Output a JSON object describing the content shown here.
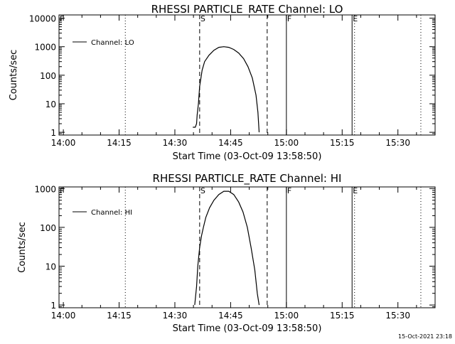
{
  "chart_data": [
    {
      "type": "line",
      "title": "RHESSI PARTICLE_RATE Channel: LO",
      "xlabel": "Start Time (03-Oct-09 13:58:50)",
      "ylabel": "Counts/sec",
      "yscale": "log",
      "ylim": [
        0.8,
        13000
      ],
      "yticks": [
        1,
        10,
        100,
        1000,
        10000
      ],
      "ytick_labels": [
        "1",
        "10",
        "100",
        "1000",
        "10000"
      ],
      "xlim": [
        "13:58:50",
        "15:40:00"
      ],
      "xticks": [
        "14:00",
        "14:15",
        "14:30",
        "14:45",
        "15:00",
        "15:15",
        "15:30"
      ],
      "legend": {
        "label": "Channel: LO",
        "location": "top-left"
      },
      "markers": [
        {
          "label": "F",
          "time": "13:58:50",
          "style": "dotted"
        },
        {
          "label": "S",
          "time": "14:36:40",
          "style": "dashed"
        },
        {
          "label": "",
          "time": "14:54:50",
          "style": "dashed"
        },
        {
          "label": "F",
          "time": "15:00:00",
          "style": "solid"
        },
        {
          "label": "E",
          "time": "15:17:40",
          "style": "solid"
        },
        {
          "label": "",
          "time": "14:16:40",
          "style": "dotted"
        },
        {
          "label": "",
          "time": "15:18:20",
          "style": "dotted"
        },
        {
          "label": "",
          "time": "15:36:10",
          "style": "dotted"
        }
      ],
      "series": [
        {
          "x": [
            "14:34:50",
            "14:35:30",
            "14:35:50",
            "14:36:00",
            "14:36:20",
            "14:36:40",
            "14:37:20",
            "14:38:00",
            "14:39:10",
            "14:40:30",
            "14:41:50",
            "14:43:10",
            "14:44:30",
            "14:45:50",
            "14:47:10",
            "14:48:30",
            "14:49:40",
            "14:50:50",
            "14:51:50",
            "14:52:20",
            "14:52:40"
          ],
          "y": [
            1.5,
            1.5,
            2,
            4,
            10,
            40,
            150,
            300,
            500,
            750,
            950,
            1000,
            950,
            800,
            600,
            380,
            200,
            80,
            20,
            5,
            1
          ]
        }
      ]
    },
    {
      "type": "line",
      "title": "RHESSI PARTICLE_RATE Channel: HI",
      "xlabel": "Start Time (03-Oct-09 13:58:50)",
      "ylabel": "Counts/sec",
      "yscale": "log",
      "ylim": [
        0.85,
        1100
      ],
      "yticks": [
        1,
        10,
        100,
        1000
      ],
      "ytick_labels": [
        "1",
        "10",
        "100",
        "1000"
      ],
      "xlim": [
        "13:58:50",
        "15:40:00"
      ],
      "xticks": [
        "14:00",
        "14:15",
        "14:30",
        "14:45",
        "15:00",
        "15:15",
        "15:30"
      ],
      "legend": {
        "label": "Channel: HI",
        "location": "top-left"
      },
      "markers": [
        {
          "label": "F",
          "time": "13:58:50",
          "style": "dotted"
        },
        {
          "label": "S",
          "time": "14:36:40",
          "style": "dashed"
        },
        {
          "label": "",
          "time": "14:54:50",
          "style": "dashed"
        },
        {
          "label": "F",
          "time": "15:00:00",
          "style": "solid"
        },
        {
          "label": "E",
          "time": "15:17:40",
          "style": "solid"
        },
        {
          "label": "",
          "time": "14:16:40",
          "style": "dotted"
        },
        {
          "label": "",
          "time": "15:18:20",
          "style": "dotted"
        },
        {
          "label": "",
          "time": "15:36:10",
          "style": "dotted"
        }
      ],
      "series": [
        {
          "x": [
            "14:35:20",
            "14:35:50",
            "14:36:10",
            "14:36:40",
            "14:37:10",
            "14:37:40",
            "14:38:20",
            "14:39:20",
            "14:40:30",
            "14:41:50",
            "14:43:10",
            "14:44:30",
            "14:45:50",
            "14:47:10",
            "14:48:20",
            "14:49:30",
            "14:50:30",
            "14:51:30",
            "14:52:10",
            "14:52:40"
          ],
          "y": [
            1,
            3,
            10,
            30,
            60,
            100,
            180,
            320,
            500,
            700,
            850,
            850,
            700,
            450,
            250,
            100,
            30,
            8,
            2,
            1
          ]
        }
      ]
    }
  ],
  "footer": {
    "timestamp": "15-Oct-2021 23:18"
  }
}
